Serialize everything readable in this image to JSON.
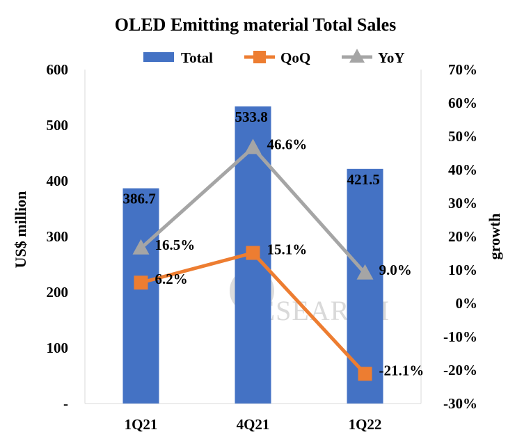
{
  "chart_data": {
    "type": "bar",
    "title": "OLED Emitting material Total Sales",
    "categories": [
      "1Q21",
      "4Q21",
      "1Q22"
    ],
    "ylabel": "US$ million",
    "y2label": "growth",
    "ylim": [
      0,
      600
    ],
    "y_ticks": [
      "-",
      "100",
      "200",
      "300",
      "400",
      "500",
      "600"
    ],
    "y2lim": [
      -30,
      70
    ],
    "y2_ticks": [
      "-30%",
      "-20%",
      "-10%",
      "0%",
      "10%",
      "20%",
      "30%",
      "40%",
      "50%",
      "60%",
      "70%"
    ],
    "legend_position": "top",
    "series": [
      {
        "name": "Total",
        "kind": "bar",
        "axis": "left",
        "color": "#4472C4",
        "values": [
          386.7,
          533.8,
          421.5
        ],
        "labels": [
          "386.7",
          "533.8",
          "421.5"
        ]
      },
      {
        "name": "QoQ",
        "kind": "line",
        "marker": "square",
        "axis": "right",
        "color": "#ED7D31",
        "values": [
          6.2,
          15.1,
          -21.1
        ],
        "labels": [
          "6.2%",
          "15.1%",
          "-21.1%"
        ]
      },
      {
        "name": "YoY",
        "kind": "line",
        "marker": "triangle",
        "axis": "right",
        "color": "#A5A5A5",
        "values": [
          16.5,
          46.6,
          9.0
        ],
        "labels": [
          "16.5%",
          "46.6%",
          "9.0%"
        ]
      }
    ],
    "watermark": "RESEARCH",
    "grid": false
  }
}
